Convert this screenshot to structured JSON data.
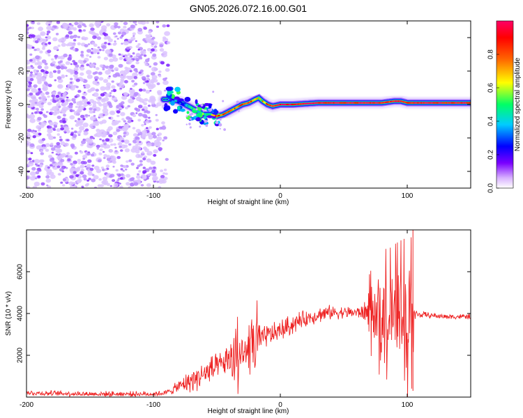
{
  "title": "GN05.2026.072.16.00.G01",
  "chart_data": [
    {
      "type": "heatmap",
      "panel": "spectrogram",
      "xlabel": "Height of straight line (km)",
      "ylabel": "Frequency (Hz)",
      "xlim": [
        -200,
        150
      ],
      "ylim": [
        -50,
        50
      ],
      "xticks": [
        -200,
        -100,
        0,
        100
      ],
      "yticks": [
        -40,
        -20,
        0,
        20,
        40
      ],
      "colorbar": {
        "label": "Normalized spectral amplitude",
        "range": [
          0.0,
          1.0
        ],
        "ticks": [
          "0.0",
          "0.2",
          "0.4",
          "0.6",
          "0.8"
        ],
        "colors": [
          "#ffffff",
          "#cc99ff",
          "#7a00ff",
          "#0000ff",
          "#00ccff",
          "#00ff66",
          "#ffff00",
          "#ff6600",
          "#ff0000",
          "#ff0066"
        ]
      },
      "noise_region_x": [
        -200,
        -88
      ],
      "ridge": {
        "x": [
          -92,
          -85,
          -80,
          -75,
          -70,
          -65,
          -60,
          -55,
          -50,
          -45,
          -40,
          -35,
          -30,
          -25,
          -20,
          -17,
          -14,
          -10,
          -6,
          0,
          10,
          30,
          50,
          70,
          80,
          90,
          95,
          100,
          110,
          130,
          150
        ],
        "freq": [
          3,
          3,
          2,
          0,
          -2,
          -4,
          -6,
          -6,
          -7,
          -6,
          -4,
          -2,
          0,
          1,
          3,
          4,
          2,
          0,
          -1,
          0,
          0,
          1,
          1,
          1,
          1,
          2,
          2,
          1,
          1,
          1,
          1
        ],
        "amplitude": [
          0.3,
          0.35,
          0.4,
          0.45,
          0.5,
          0.55,
          0.55,
          0.6,
          0.8,
          0.85,
          0.8,
          0.75,
          0.8,
          0.85,
          0.7,
          0.6,
          0.7,
          0.85,
          0.9,
          0.95,
          0.95,
          0.95,
          0.95,
          0.95,
          0.9,
          0.9,
          0.9,
          0.95,
          0.95,
          0.95,
          0.95
        ]
      }
    },
    {
      "type": "line",
      "panel": "snr",
      "xlabel": "Height of straight line (km)",
      "ylabel": "SNR (10 * v/v)",
      "xlim": [
        -200,
        150
      ],
      "ylim": [
        0,
        8000
      ],
      "xticks": [
        -200,
        -100,
        0,
        100
      ],
      "yticks": [
        2000,
        4000,
        6000
      ],
      "series": [
        {
          "name": "SNR",
          "color": "#ee2222",
          "x": [
            -200,
            -150,
            -100,
            -90,
            -85,
            -80,
            -75,
            -70,
            -65,
            -60,
            -55,
            -50,
            -45,
            -40,
            -35,
            -30,
            -25,
            -20,
            -15,
            -10,
            -5,
            0,
            5,
            10,
            15,
            20,
            25,
            30,
            35,
            40,
            45,
            50,
            55,
            60,
            65,
            70,
            75,
            80,
            85,
            90,
            95,
            100,
            103,
            106,
            110,
            120,
            130,
            140,
            150
          ],
          "y": [
            200,
            150,
            150,
            200,
            350,
            500,
            650,
            800,
            950,
            1100,
            1250,
            1400,
            1600,
            1750,
            1900,
            2100,
            2350,
            2550,
            2750,
            2950,
            3050,
            3200,
            3350,
            3500,
            3650,
            3750,
            3850,
            3950,
            4000,
            4050,
            4050,
            4050,
            4050,
            4050,
            4050,
            4050,
            4000,
            4000,
            3950,
            3950,
            3900,
            3800,
            3800,
            3950,
            3950,
            3900,
            3850,
            3850,
            3850
          ],
          "spread": [
            150,
            150,
            150,
            150,
            250,
            350,
            500,
            700,
            700,
            700,
            1000,
            700,
            700,
            1000,
            1800,
            900,
            800,
            2200,
            600,
            700,
            600,
            600,
            600,
            600,
            500,
            450,
            450,
            450,
            450,
            400,
            350,
            350,
            350,
            350,
            400,
            1500,
            2200,
            2600,
            2600,
            2800,
            3000,
            3200,
            3300,
            300,
            200,
            150,
            150,
            150,
            150
          ]
        }
      ]
    }
  ]
}
